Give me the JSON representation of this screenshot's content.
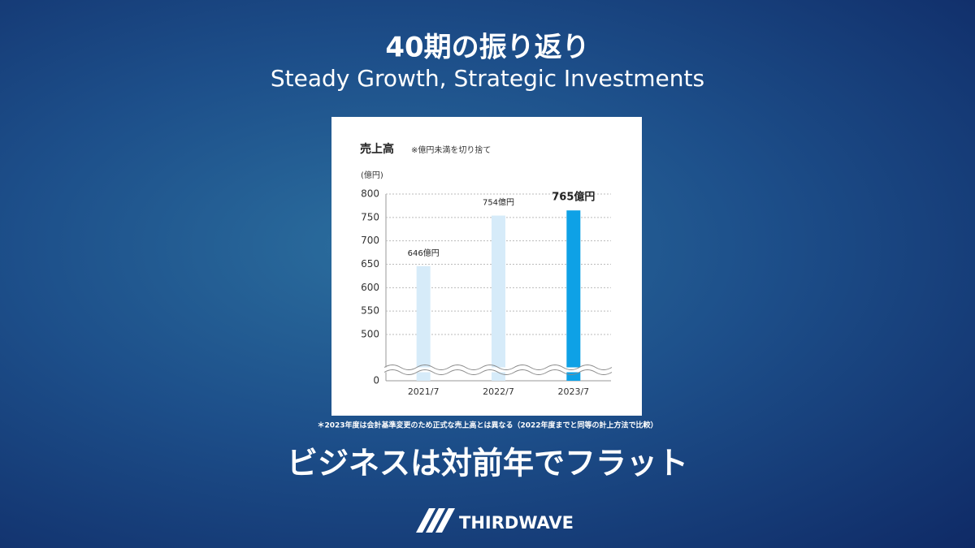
{
  "slide": {
    "title": "40期の振り返り",
    "subtitle": "Steady Growth, Strategic Investments",
    "footnote": "＊2023年度は会計基準変更のため正式な売上高とは異なる（2022年度までと同等の計上方法で比較）",
    "message": "ビジネスは対前年でフラット",
    "logo": "THIRDWAVE"
  },
  "chart_data": {
    "type": "bar",
    "title": "売上高",
    "subtitle": "※億円未満を切り捨て",
    "y_label": "(億円)",
    "categories": [
      "2021/7",
      "2022/7",
      "2023/7"
    ],
    "values": [
      646,
      754,
      765
    ],
    "value_labels": [
      "646億円",
      "754億円",
      "765億円"
    ],
    "colors": [
      "#d6ebf9",
      "#d6ebf9",
      "#0ea1e6"
    ],
    "ylim": [
      0,
      800
    ],
    "yticks": [
      0,
      500,
      550,
      600,
      650,
      700,
      750,
      800
    ],
    "grid": true
  }
}
